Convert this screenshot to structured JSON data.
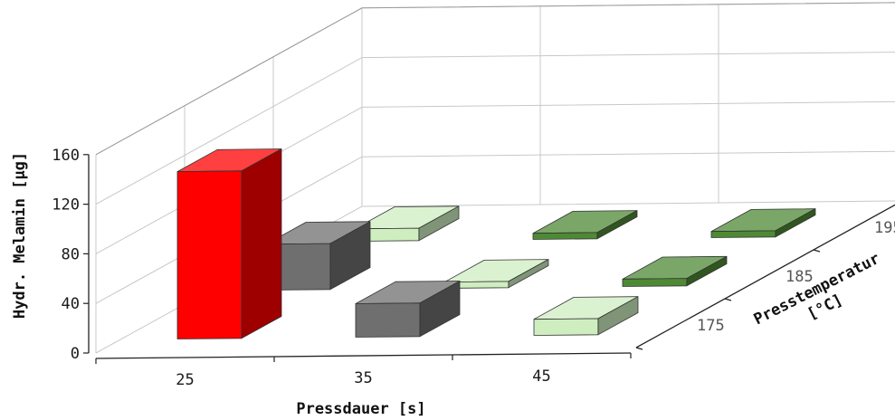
{
  "chart_data": {
    "type": "bar3d",
    "x_categories": [
      "25",
      "35",
      "45"
    ],
    "z_categories": [
      "175",
      "185",
      "195"
    ],
    "xlabel": "Pressdauer [s]",
    "ylabel": "Hydr. Melamin [µg]",
    "zlabel_line1": "Presstemperatur",
    "zlabel_line2": "[°C]",
    "yticks": [
      "0",
      "40",
      "80",
      "120",
      "160"
    ],
    "ylim": [
      0,
      160
    ],
    "grid": true,
    "series": [
      {
        "values": [
          135,
          27,
          13
        ]
      },
      {
        "values": [
          37,
          5,
          6
        ]
      },
      {
        "values": [
          10,
          5,
          5
        ]
      }
    ],
    "colors": [
      [
        "#ff0000",
        "#6f6f6f",
        "#cfeec0"
      ],
      [
        "#6f6f6f",
        "#cfeec0",
        "#4e8a34"
      ],
      [
        "#cfeec0",
        "#4e8a34",
        "#4e8a34"
      ]
    ]
  }
}
